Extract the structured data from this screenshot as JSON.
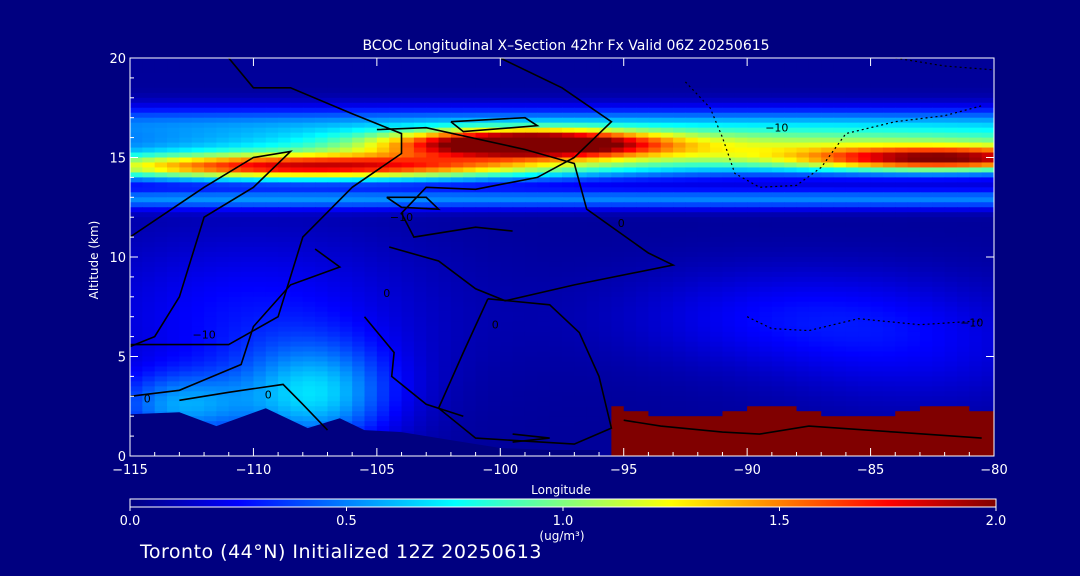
{
  "chart_data": {
    "type": "heatmap",
    "title": "BCOC Longitudinal X–Section 42hr  Fx Valid 06Z 20250615",
    "xlabel": "Longitude",
    "ylabel": "Altitude (km)",
    "xlim": [
      -115,
      -80
    ],
    "ylim": [
      0,
      20
    ],
    "x_ticks": [
      "−115",
      "−110",
      "−105",
      "−100",
      "−95",
      "−90",
      "−85",
      "−80"
    ],
    "x_tick_values": [
      -115,
      -110,
      -105,
      -100,
      -95,
      -90,
      -85,
      -80
    ],
    "y_ticks": [
      "0",
      "5",
      "10",
      "15",
      "20"
    ],
    "y_tick_values": [
      0,
      5,
      10,
      15,
      20
    ],
    "colorbar": {
      "label": "(ug/m³)",
      "range": [
        0.0,
        2.0
      ],
      "tick_labels": [
        "0.0",
        "0.5",
        "1.0",
        "1.5",
        "2.0"
      ],
      "tick_values": [
        0.0,
        0.5,
        1.0,
        1.5,
        2.0
      ],
      "colormap": [
        "#000080",
        "#0000ff",
        "#0080ff",
        "#00ffff",
        "#80ff80",
        "#ffff00",
        "#ff8000",
        "#ff0000",
        "#800000"
      ]
    },
    "contour_labels": [
      {
        "text": "−10",
        "lon": -112,
        "alt": 5.9
      },
      {
        "text": "−10",
        "lon": -104,
        "alt": 11.8
      },
      {
        "text": "−10",
        "lon": -88.8,
        "alt": 16.3
      },
      {
        "text": "−10",
        "lon": -80.9,
        "alt": 6.5
      },
      {
        "text": "0",
        "lon": -114.3,
        "alt": 2.7
      },
      {
        "text": "0",
        "lon": -109.4,
        "alt": 2.9
      },
      {
        "text": "0",
        "lon": -104.6,
        "alt": 8.0
      },
      {
        "text": "0",
        "lon": -100.2,
        "alt": 6.4
      },
      {
        "text": "0",
        "lon": -95.1,
        "alt": 11.5
      }
    ]
  },
  "footer": {
    "text": "Toronto (44°N) Initialized 12Z 20250613"
  }
}
